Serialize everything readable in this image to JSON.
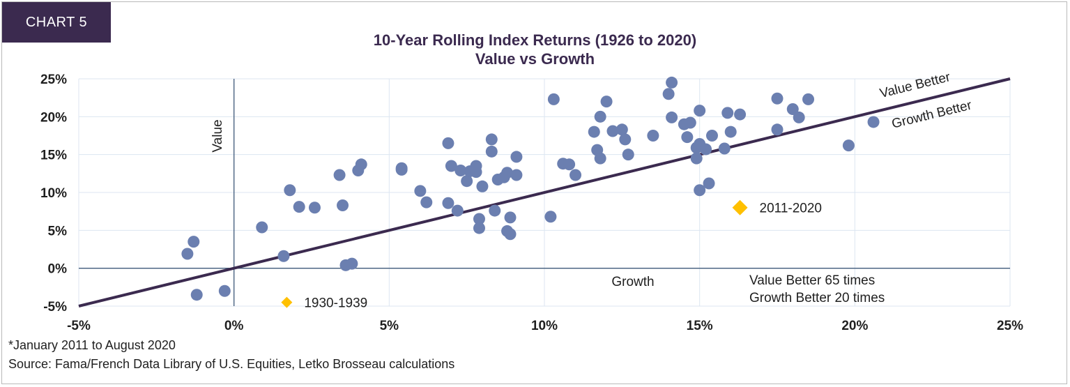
{
  "badge": "CHART 5",
  "chart_data": {
    "type": "scatter",
    "title": "10-Year Rolling Index Returns (1926 to 2020)",
    "subtitle": "Value vs Growth",
    "xlim": [
      -5,
      25
    ],
    "ylim": [
      -5,
      25
    ],
    "x_ticks": [
      "-5%",
      "0%",
      "5%",
      "10%",
      "15%",
      "20%",
      "25%"
    ],
    "y_ticks": [
      "25%",
      "20%",
      "15%",
      "10%",
      "5%",
      "0%",
      "-5%"
    ],
    "grid": true,
    "axis_labels": {
      "value": "Value",
      "growth": "Growth"
    },
    "diagonal_labels": {
      "upper": "Value Better",
      "lower": "Growth Better"
    },
    "summary": [
      "Value Better 65 times",
      "Growth Better 20 times"
    ],
    "series": [
      {
        "marker": "circle",
        "color": "#6b7fb0",
        "points": [
          [
            -1.5,
            1.9
          ],
          [
            -1.3,
            3.5
          ],
          [
            -1.2,
            -3.5
          ],
          [
            -0.3,
            -3.0
          ],
          [
            0.9,
            5.4
          ],
          [
            1.6,
            1.6
          ],
          [
            1.8,
            10.3
          ],
          [
            2.1,
            8.1
          ],
          [
            2.6,
            8.0
          ],
          [
            3.4,
            12.3
          ],
          [
            3.5,
            8.3
          ],
          [
            3.6,
            0.4
          ],
          [
            3.8,
            0.6
          ],
          [
            4.0,
            12.9
          ],
          [
            4.1,
            13.7
          ],
          [
            5.4,
            13.2
          ],
          [
            5.4,
            13.0
          ],
          [
            6.0,
            10.2
          ],
          [
            6.2,
            8.7
          ],
          [
            6.9,
            16.5
          ],
          [
            6.9,
            8.6
          ],
          [
            7.0,
            13.5
          ],
          [
            7.2,
            7.6
          ],
          [
            7.3,
            12.9
          ],
          [
            7.5,
            11.5
          ],
          [
            7.6,
            12.8
          ],
          [
            7.8,
            12.7
          ],
          [
            7.8,
            13.5
          ],
          [
            7.9,
            6.5
          ],
          [
            7.9,
            5.3
          ],
          [
            8.0,
            10.8
          ],
          [
            8.3,
            17.0
          ],
          [
            8.3,
            15.4
          ],
          [
            8.4,
            7.6
          ],
          [
            8.5,
            11.7
          ],
          [
            8.7,
            12.0
          ],
          [
            8.8,
            12.6
          ],
          [
            8.8,
            4.9
          ],
          [
            8.9,
            6.7
          ],
          [
            8.9,
            4.5
          ],
          [
            9.1,
            14.7
          ],
          [
            9.1,
            12.3
          ],
          [
            10.2,
            6.8
          ],
          [
            10.3,
            22.3
          ],
          [
            10.6,
            13.8
          ],
          [
            10.8,
            13.7
          ],
          [
            11.0,
            12.3
          ],
          [
            11.6,
            18.0
          ],
          [
            11.7,
            15.6
          ],
          [
            11.8,
            14.5
          ],
          [
            11.8,
            20.0
          ],
          [
            12.0,
            22.0
          ],
          [
            12.2,
            18.1
          ],
          [
            12.5,
            18.3
          ],
          [
            12.6,
            17.0
          ],
          [
            12.7,
            15.0
          ],
          [
            13.5,
            17.5
          ],
          [
            14.0,
            23.0
          ],
          [
            14.1,
            19.9
          ],
          [
            14.1,
            24.5
          ],
          [
            14.5,
            19.0
          ],
          [
            14.6,
            17.3
          ],
          [
            14.7,
            19.2
          ],
          [
            14.9,
            15.9
          ],
          [
            14.9,
            14.5
          ],
          [
            15.0,
            16.4
          ],
          [
            15.0,
            10.3
          ],
          [
            15.0,
            20.8
          ],
          [
            15.2,
            15.7
          ],
          [
            15.3,
            11.2
          ],
          [
            15.4,
            17.5
          ],
          [
            15.8,
            15.8
          ],
          [
            15.9,
            20.5
          ],
          [
            16.0,
            18.0
          ],
          [
            16.3,
            20.3
          ],
          [
            17.5,
            22.4
          ],
          [
            17.5,
            18.3
          ],
          [
            18.0,
            21.0
          ],
          [
            18.2,
            19.9
          ],
          [
            18.5,
            22.3
          ],
          [
            19.8,
            16.2
          ],
          [
            20.6,
            19.3
          ]
        ]
      },
      {
        "marker": "diamond",
        "color": "#ffc000",
        "points": [
          [
            16.3,
            8.0
          ],
          [
            1.7,
            -4.5
          ]
        ],
        "labels": [
          "2011-2020",
          "1930-1939"
        ]
      }
    ]
  },
  "footnotes": {
    "note": "*January 2011 to August 2020",
    "source": "Source: Fama/French Data Library of U.S. Equities, Letko Brosseau calculations"
  }
}
